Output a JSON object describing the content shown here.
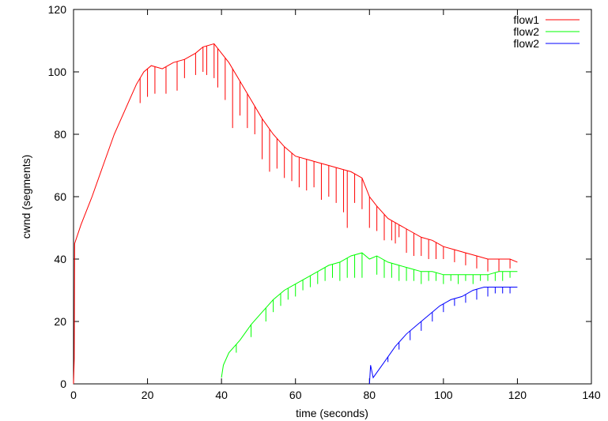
{
  "chart_data": {
    "type": "line",
    "xlabel": "time (seconds)",
    "ylabel": "cwnd (segments)",
    "xlim": [
      0,
      140
    ],
    "ylim": [
      0,
      120
    ],
    "xticks": [
      0,
      20,
      40,
      60,
      80,
      100,
      120,
      140
    ],
    "yticks": [
      0,
      20,
      40,
      60,
      80,
      100,
      120
    ],
    "grid": false,
    "legend_position": "top-right",
    "series": [
      {
        "name": "flow1",
        "color": "#ff0000",
        "points": [
          [
            0,
            0
          ],
          [
            0.2,
            8
          ],
          [
            0.3,
            45
          ],
          [
            2,
            51
          ],
          [
            5,
            60
          ],
          [
            8,
            70
          ],
          [
            11,
            80
          ],
          [
            14,
            88
          ],
          [
            17,
            96
          ],
          [
            19,
            100
          ],
          [
            21,
            102
          ],
          [
            24,
            101
          ],
          [
            27,
            103
          ],
          [
            30,
            104
          ],
          [
            33,
            106
          ],
          [
            35,
            108
          ],
          [
            38,
            109
          ],
          [
            40,
            106
          ],
          [
            42,
            103
          ],
          [
            45,
            97
          ],
          [
            48,
            91
          ],
          [
            51,
            85
          ],
          [
            54,
            80
          ],
          [
            57,
            76
          ],
          [
            60,
            73
          ],
          [
            63,
            72
          ],
          [
            66,
            71
          ],
          [
            69,
            70
          ],
          [
            72,
            69
          ],
          [
            75,
            68
          ],
          [
            78,
            66
          ],
          [
            80,
            60
          ],
          [
            82,
            57
          ],
          [
            85,
            53
          ],
          [
            88,
            51
          ],
          [
            91,
            49
          ],
          [
            94,
            47
          ],
          [
            97,
            46
          ],
          [
            100,
            44
          ],
          [
            103,
            43
          ],
          [
            106,
            42
          ],
          [
            109,
            41
          ],
          [
            112,
            40
          ],
          [
            115,
            40
          ],
          [
            118,
            40
          ],
          [
            120,
            39
          ]
        ],
        "dips": [
          [
            18,
            90
          ],
          [
            20,
            92
          ],
          [
            22,
            93
          ],
          [
            25,
            93
          ],
          [
            28,
            94
          ],
          [
            30,
            98
          ],
          [
            33,
            99
          ],
          [
            35,
            100
          ],
          [
            36,
            99
          ],
          [
            38,
            98
          ],
          [
            39,
            95
          ],
          [
            41,
            91
          ],
          [
            43,
            82
          ],
          [
            45,
            86
          ],
          [
            47,
            82
          ],
          [
            49,
            80
          ],
          [
            51,
            72
          ],
          [
            53,
            68
          ],
          [
            55,
            69
          ],
          [
            57,
            66
          ],
          [
            59,
            65
          ],
          [
            61,
            63
          ],
          [
            63,
            62
          ],
          [
            65,
            63
          ],
          [
            67,
            59
          ],
          [
            69,
            60
          ],
          [
            71,
            58
          ],
          [
            73,
            55
          ],
          [
            74,
            50
          ],
          [
            76,
            58
          ],
          [
            78,
            56
          ],
          [
            80,
            50
          ],
          [
            82,
            49
          ],
          [
            84,
            46
          ],
          [
            86,
            46
          ],
          [
            87,
            45
          ],
          [
            88,
            47
          ],
          [
            90,
            42
          ],
          [
            92,
            41
          ],
          [
            94,
            41
          ],
          [
            96,
            40
          ],
          [
            98,
            40
          ],
          [
            100,
            40
          ],
          [
            103,
            39
          ],
          [
            106,
            38
          ],
          [
            109,
            37
          ],
          [
            112,
            36
          ],
          [
            115,
            36
          ],
          [
            118,
            37
          ]
        ]
      },
      {
        "name": "flow2",
        "color": "#00ff00",
        "points": [
          [
            40,
            2
          ],
          [
            40.5,
            6
          ],
          [
            42,
            10
          ],
          [
            45,
            14
          ],
          [
            48,
            19
          ],
          [
            51,
            23
          ],
          [
            54,
            27
          ],
          [
            57,
            30
          ],
          [
            60,
            32
          ],
          [
            63,
            34
          ],
          [
            66,
            36
          ],
          [
            69,
            38
          ],
          [
            72,
            39
          ],
          [
            75,
            41
          ],
          [
            78,
            42
          ],
          [
            80,
            40
          ],
          [
            82,
            41
          ],
          [
            85,
            39
          ],
          [
            88,
            38
          ],
          [
            91,
            37
          ],
          [
            94,
            36
          ],
          [
            97,
            36
          ],
          [
            100,
            35
          ],
          [
            103,
            35
          ],
          [
            106,
            35
          ],
          [
            109,
            35
          ],
          [
            112,
            35
          ],
          [
            115,
            36
          ],
          [
            118,
            36
          ],
          [
            120,
            36
          ]
        ],
        "dips": [
          [
            44,
            10
          ],
          [
            48,
            15
          ],
          [
            52,
            20
          ],
          [
            54,
            23
          ],
          [
            56,
            25
          ],
          [
            58,
            27
          ],
          [
            60,
            28
          ],
          [
            62,
            30
          ],
          [
            64,
            31
          ],
          [
            66,
            32
          ],
          [
            68,
            33
          ],
          [
            70,
            34
          ],
          [
            72,
            33
          ],
          [
            74,
            34
          ],
          [
            76,
            34
          ],
          [
            78,
            34
          ],
          [
            82,
            35
          ],
          [
            84,
            34
          ],
          [
            86,
            34
          ],
          [
            88,
            33
          ],
          [
            90,
            33
          ],
          [
            92,
            33
          ],
          [
            94,
            32
          ],
          [
            96,
            33
          ],
          [
            98,
            33
          ],
          [
            100,
            32
          ],
          [
            102,
            33
          ],
          [
            104,
            32
          ],
          [
            106,
            33
          ],
          [
            108,
            32
          ],
          [
            110,
            33
          ],
          [
            112,
            33
          ],
          [
            114,
            33
          ],
          [
            116,
            33
          ],
          [
            118,
            34
          ]
        ]
      },
      {
        "name": "flow2",
        "color": "#0000ff",
        "points": [
          [
            80,
            0
          ],
          [
            80.3,
            6
          ],
          [
            81,
            2
          ],
          [
            84,
            7
          ],
          [
            87,
            12
          ],
          [
            90,
            16
          ],
          [
            93,
            19
          ],
          [
            96,
            22
          ],
          [
            99,
            25
          ],
          [
            102,
            27
          ],
          [
            105,
            28
          ],
          [
            108,
            30
          ],
          [
            111,
            31
          ],
          [
            114,
            31
          ],
          [
            116,
            31
          ],
          [
            118,
            31
          ],
          [
            120,
            31
          ]
        ],
        "dips": [
          [
            85,
            7
          ],
          [
            88,
            11
          ],
          [
            91,
            14
          ],
          [
            94,
            17
          ],
          [
            97,
            20
          ],
          [
            100,
            23
          ],
          [
            103,
            25
          ],
          [
            106,
            26
          ],
          [
            109,
            27
          ],
          [
            112,
            28
          ],
          [
            114,
            29
          ],
          [
            116,
            29
          ],
          [
            118,
            29
          ]
        ]
      }
    ]
  }
}
